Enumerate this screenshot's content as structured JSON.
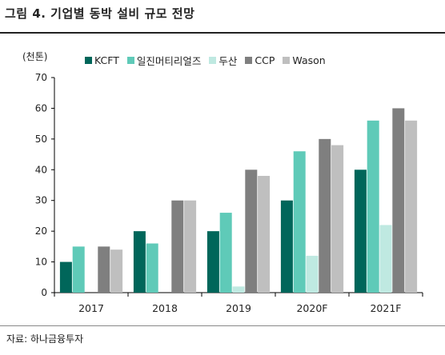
{
  "header": {
    "title": "그림 4. 기업별 동박 설비 규모 전망"
  },
  "footer": {
    "source": "자료: 하나금융투자"
  },
  "chart_data": {
    "type": "bar",
    "title": "그림 4. 기업별 동박 설비 규모 전망",
    "ylabel": "(천톤)",
    "xlabel": "",
    "ylim": [
      0,
      70
    ],
    "yticks": [
      0,
      10,
      20,
      30,
      40,
      50,
      60,
      70
    ],
    "grid": false,
    "legend": "top",
    "categories": [
      "2017",
      "2018",
      "2019",
      "2020F",
      "2021F"
    ],
    "series": [
      {
        "name": "KCFT",
        "color": "#00665a",
        "values": [
          10,
          20,
          20,
          30,
          40
        ]
      },
      {
        "name": "일진머티리얼즈",
        "color": "#5fcab8",
        "values": [
          15,
          16,
          26,
          46,
          56
        ]
      },
      {
        "name": "두산",
        "color": "#bfe9e1",
        "values": [
          0,
          0,
          2,
          12,
          22
        ]
      },
      {
        "name": "CCP",
        "color": "#7f7f7f",
        "values": [
          15,
          30,
          40,
          50,
          60
        ]
      },
      {
        "name": "Wason",
        "color": "#bfbfbf",
        "values": [
          14,
          30,
          38,
          48,
          56
        ]
      }
    ]
  }
}
